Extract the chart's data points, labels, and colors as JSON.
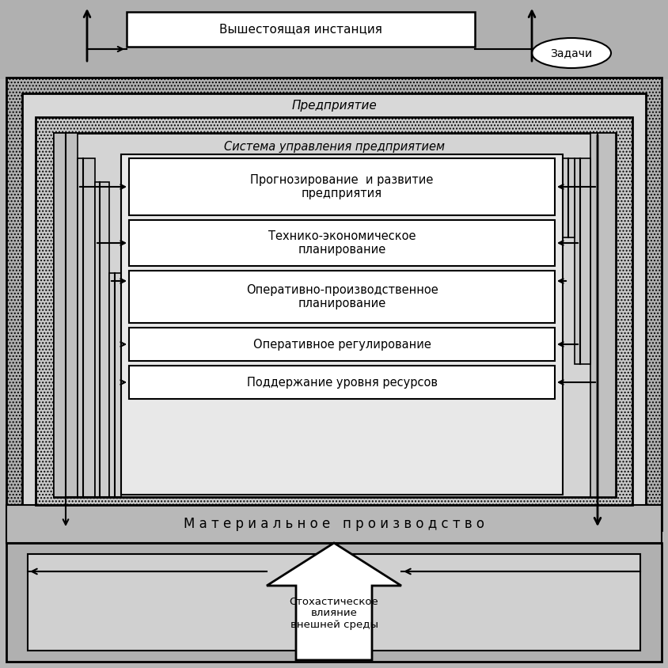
{
  "bg_color": "#b8b8b8",
  "top_box_text": "Вышестоящая инстанция",
  "zadachi_text": "Задачи",
  "predpriyatie_text": "Предприятие",
  "sistema_text": "Система управления предприятием",
  "box1_text": "Прогнозирование  и развитие\nпредприятия",
  "box2_text": "Технико-экономическое\nпланирование",
  "box3_text": "Оперативно-производственное\nпланирование",
  "box4_text": "Оперативное регулирование",
  "box5_text": "Поддержание уровня ресурсов",
  "mat_prod_text": "М а т е р и а л ь н о е   п р о и з в о д с т в о",
  "stoh_text": "Стохастическое\nвлияние\nвнешней среды",
  "hatch_color": "#a0a0a0",
  "box_fill": "#f0f0f0",
  "inner_fill": "#e0e0e0",
  "mid_fill": "#cccccc"
}
